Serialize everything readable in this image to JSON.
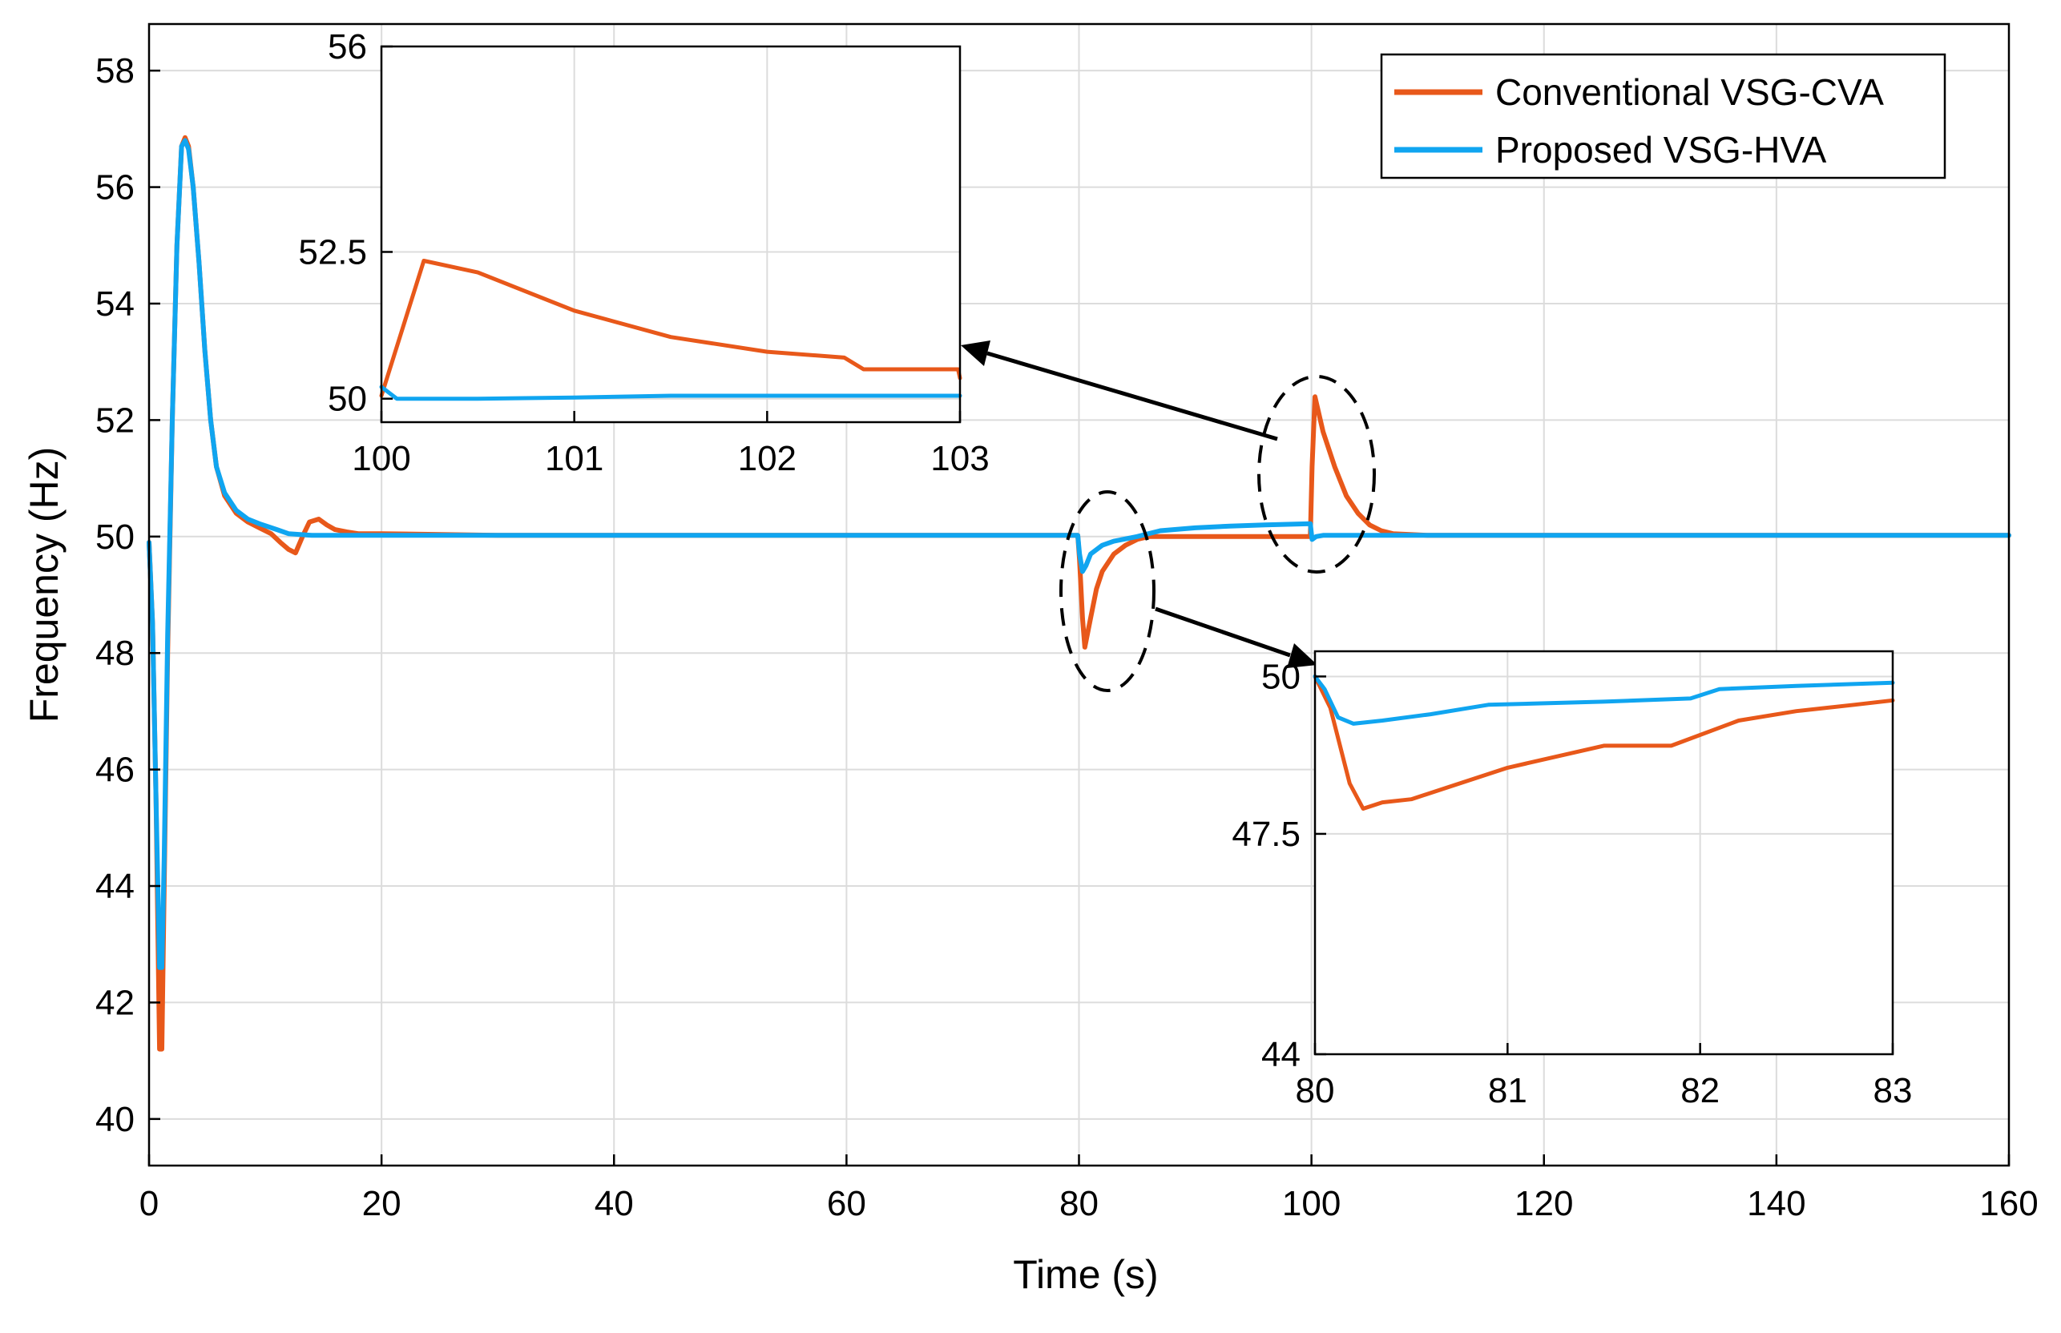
{
  "chart_data": [
    {
      "type": "line",
      "role": "main",
      "xlabel": "Time (s)",
      "ylabel": "Frequency (Hz)",
      "xlim": [
        0,
        160
      ],
      "ylim": [
        39.2,
        58.8
      ],
      "xticks": [
        0,
        20,
        40,
        60,
        80,
        100,
        120,
        140,
        160
      ],
      "yticks": [
        40,
        42,
        44,
        46,
        48,
        50,
        52,
        54,
        56,
        58
      ],
      "grid": true,
      "legend_position": "top-right",
      "series": [
        {
          "name": "Conventional VSG-CVA",
          "color": "#E8581A",
          "points": [
            [
              0,
              49.9
            ],
            [
              0.3,
              48.5
            ],
            [
              0.6,
              45.5
            ],
            [
              0.9,
              41.2
            ],
            [
              1.1,
              41.2
            ],
            [
              1.3,
              44
            ],
            [
              1.6,
              48
            ],
            [
              2,
              52
            ],
            [
              2.4,
              55
            ],
            [
              2.8,
              56.7
            ],
            [
              3.1,
              56.85
            ],
            [
              3.4,
              56.7
            ],
            [
              3.8,
              56
            ],
            [
              4.3,
              54.7
            ],
            [
              4.8,
              53.2
            ],
            [
              5.3,
              52
            ],
            [
              5.8,
              51.2
            ],
            [
              6.5,
              50.7
            ],
            [
              7.5,
              50.4
            ],
            [
              8.5,
              50.25
            ],
            [
              9.5,
              50.15
            ],
            [
              10.5,
              50.05
            ],
            [
              11.3,
              49.9
            ],
            [
              12,
              49.78
            ],
            [
              12.6,
              49.72
            ],
            [
              13.2,
              50.0
            ],
            [
              13.8,
              50.25
            ],
            [
              14.6,
              50.3
            ],
            [
              15.3,
              50.2
            ],
            [
              16,
              50.12
            ],
            [
              17,
              50.08
            ],
            [
              18,
              50.05
            ],
            [
              20,
              50.05
            ],
            [
              30,
              50.02
            ],
            [
              50,
              50.02
            ],
            [
              70,
              50.02
            ],
            [
              79.9,
              50.02
            ],
            [
              80.05,
              49.6
            ],
            [
              80.3,
              48.6
            ],
            [
              80.5,
              48.1
            ],
            [
              81,
              48.6
            ],
            [
              81.5,
              49.1
            ],
            [
              82,
              49.4
            ],
            [
              83,
              49.7
            ],
            [
              84,
              49.85
            ],
            [
              85,
              49.95
            ],
            [
              86,
              50.0
            ],
            [
              90,
              50.0
            ],
            [
              95,
              50.0
            ],
            [
              99.9,
              50.0
            ],
            [
              100.05,
              51.2
            ],
            [
              100.3,
              52.4
            ],
            [
              101,
              51.8
            ],
            [
              102,
              51.2
            ],
            [
              103,
              50.7
            ],
            [
              104,
              50.4
            ],
            [
              105,
              50.2
            ],
            [
              106,
              50.1
            ],
            [
              107,
              50.05
            ],
            [
              110,
              50.02
            ],
            [
              160,
              50.02
            ]
          ]
        },
        {
          "name": "Proposed VSG-HVA",
          "color": "#10A5F0",
          "points": [
            [
              0,
              49.9
            ],
            [
              0.3,
              48.5
            ],
            [
              0.6,
              45.5
            ],
            [
              0.9,
              42.6
            ],
            [
              1.1,
              42.6
            ],
            [
              1.3,
              44.5
            ],
            [
              1.6,
              48.3
            ],
            [
              2,
              52
            ],
            [
              2.4,
              55
            ],
            [
              2.8,
              56.7
            ],
            [
              3.1,
              56.8
            ],
            [
              3.4,
              56.65
            ],
            [
              3.8,
              56
            ],
            [
              4.3,
              54.7
            ],
            [
              4.8,
              53.2
            ],
            [
              5.3,
              52
            ],
            [
              5.8,
              51.2
            ],
            [
              6.5,
              50.75
            ],
            [
              7.5,
              50.45
            ],
            [
              8.5,
              50.3
            ],
            [
              9.5,
              50.22
            ],
            [
              11,
              50.12
            ],
            [
              12,
              50.05
            ],
            [
              14,
              50.02
            ],
            [
              20,
              50.02
            ],
            [
              40,
              50.02
            ],
            [
              60,
              50.02
            ],
            [
              79.9,
              50.02
            ],
            [
              80.05,
              49.7
            ],
            [
              80.3,
              49.4
            ],
            [
              80.6,
              49.5
            ],
            [
              81,
              49.7
            ],
            [
              82,
              49.85
            ],
            [
              83,
              49.92
            ],
            [
              85,
              50.0
            ],
            [
              87,
              50.1
            ],
            [
              90,
              50.15
            ],
            [
              93,
              50.18
            ],
            [
              96,
              50.2
            ],
            [
              99.9,
              50.22
            ],
            [
              100.05,
              49.95
            ],
            [
              100.4,
              50.0
            ],
            [
              101,
              50.02
            ],
            [
              110,
              50.02
            ],
            [
              160,
              50.02
            ]
          ]
        }
      ]
    },
    {
      "type": "line",
      "role": "inset-top",
      "xlim": [
        100,
        103
      ],
      "ylim": [
        49.6,
        56
      ],
      "xticks": [
        100,
        101,
        102,
        103
      ],
      "yticks": [
        50,
        52.5,
        56
      ],
      "ytick_labels": [
        "50",
        "52.5",
        "56"
      ],
      "grid": true,
      "series": [
        {
          "name": "Conventional VSG-CVA",
          "color": "#E8581A",
          "points": [
            [
              100,
              50.05
            ],
            [
              100.22,
              52.35
            ],
            [
              100.5,
              52.15
            ],
            [
              101,
              51.5
            ],
            [
              101.5,
              51.05
            ],
            [
              102,
              50.8
            ],
            [
              102.4,
              50.7
            ],
            [
              102.5,
              50.5
            ],
            [
              102.99,
              50.5
            ],
            [
              103,
              50.35
            ]
          ]
        },
        {
          "name": "Proposed VSG-HVA",
          "color": "#10A5F0",
          "points": [
            [
              100,
              50.2
            ],
            [
              100.08,
              50.0
            ],
            [
              100.5,
              50.0
            ],
            [
              101,
              50.02
            ],
            [
              101.5,
              50.05
            ],
            [
              102,
              50.05
            ],
            [
              102.5,
              50.05
            ],
            [
              103,
              50.05
            ]
          ]
        }
      ]
    },
    {
      "type": "line",
      "role": "inset-bottom",
      "xlim": [
        80,
        83
      ],
      "ylim": [
        44,
        50.4
      ],
      "xticks": [
        80,
        81,
        82,
        83
      ],
      "yticks": [
        44,
        47.5,
        50
      ],
      "ytick_labels": [
        "44",
        "47.5",
        "50"
      ],
      "grid": true,
      "series": [
        {
          "name": "Conventional VSG-CVA",
          "color": "#E8581A",
          "points": [
            [
              80,
              50.0
            ],
            [
              80.08,
              49.5
            ],
            [
              80.18,
              48.3
            ],
            [
              80.25,
              47.9
            ],
            [
              80.35,
              48.0
            ],
            [
              80.5,
              48.05
            ],
            [
              80.7,
              48.25
            ],
            [
              81,
              48.55
            ],
            [
              81.5,
              48.9
            ],
            [
              81.85,
              48.9
            ],
            [
              82.2,
              49.3
            ],
            [
              82.5,
              49.45
            ],
            [
              82.8,
              49.55
            ],
            [
              83,
              49.62
            ]
          ]
        },
        {
          "name": "Proposed VSG-HVA",
          "color": "#10A5F0",
          "points": [
            [
              80,
              50.0
            ],
            [
              80.05,
              49.8
            ],
            [
              80.12,
              49.35
            ],
            [
              80.2,
              49.25
            ],
            [
              80.35,
              49.3
            ],
            [
              80.6,
              49.4
            ],
            [
              80.9,
              49.55
            ],
            [
              81.5,
              49.6
            ],
            [
              81.95,
              49.65
            ],
            [
              82.1,
              49.8
            ],
            [
              82.5,
              49.85
            ],
            [
              83,
              49.9
            ]
          ]
        }
      ]
    }
  ]
}
